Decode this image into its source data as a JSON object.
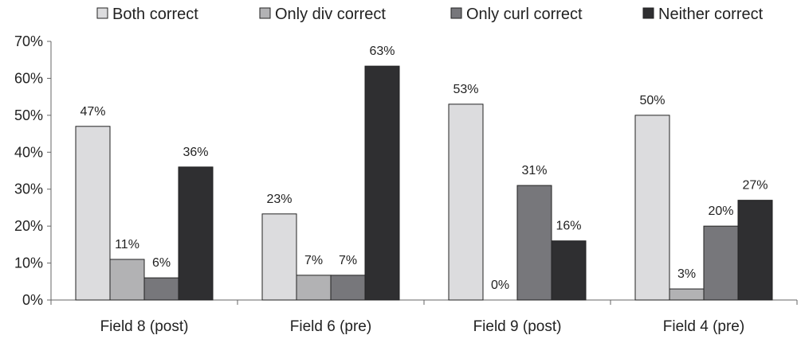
{
  "chart_data": {
    "type": "bar",
    "title": "",
    "xlabel": "",
    "ylabel": "",
    "categories": [
      "Field 8 (post)",
      "Field 6 (pre)",
      "Field 9 (post)",
      "Field 4 (pre)"
    ],
    "series": [
      {
        "name": "Both correct",
        "values": [
          47,
          23.3,
          53,
          50
        ],
        "labels": [
          "47%",
          "23%",
          "53%",
          "50%"
        ],
        "color": "#dcdcde"
      },
      {
        "name": "Only div correct",
        "values": [
          11,
          6.7,
          0,
          3
        ],
        "labels": [
          "11%",
          "7%",
          "0%",
          "3%"
        ],
        "color": "#b2b2b4"
      },
      {
        "name": "Only curl correct",
        "values": [
          6,
          6.7,
          31,
          20
        ],
        "labels": [
          "6%",
          "7%",
          "31%",
          "20%"
        ],
        "color": "#77777b"
      },
      {
        "name": "Neither correct",
        "values": [
          36,
          63.3,
          16,
          27
        ],
        "labels": [
          "36%",
          "63%",
          "16%",
          "27%"
        ],
        "color": "#2f2f31"
      }
    ],
    "ylim": [
      0,
      70
    ],
    "yticks": [
      "0%",
      "10%",
      "20%",
      "30%",
      "40%",
      "50%",
      "60%",
      "70%"
    ],
    "grid": false,
    "legend_position": "top"
  }
}
